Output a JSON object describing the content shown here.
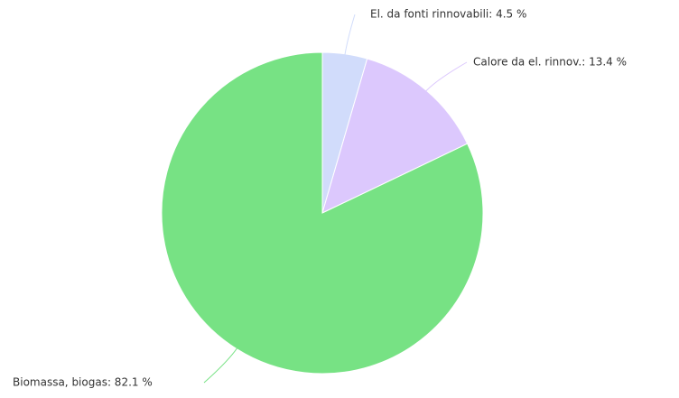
{
  "chart_data": {
    "type": "pie",
    "values": [
      4.5,
      13.4,
      82.1
    ],
    "value_labels": [
      "El. da fonti rinnovabili: 4.5 %",
      "Calore da el. rinnov.: 13.4 %",
      "Biomassa, biogas: 82.1 %"
    ],
    "colors": [
      "#d1dcfb",
      "#dcc8fd",
      "#77e284"
    ]
  }
}
